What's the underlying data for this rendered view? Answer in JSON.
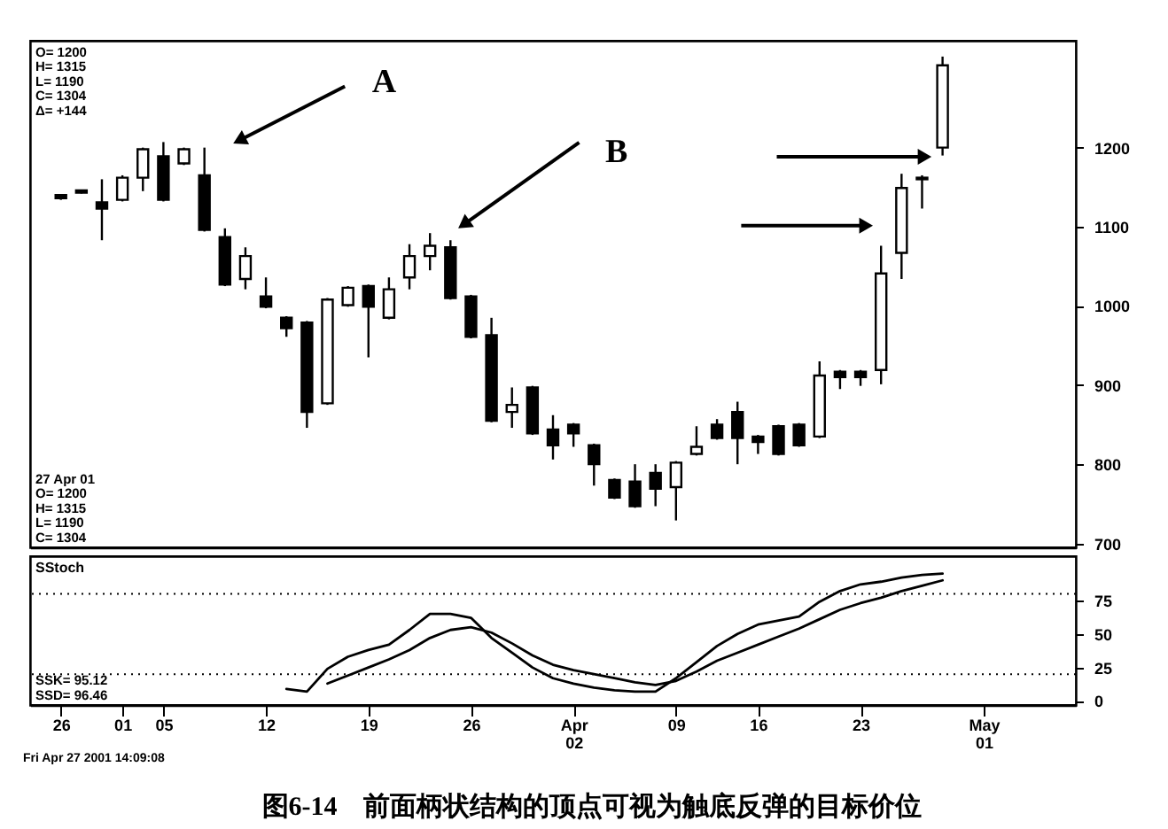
{
  "chart_data": [
    {
      "type": "candlestick",
      "color": "#000000",
      "categories": [
        null,
        null,
        null,
        null,
        null,
        null,
        null,
        null,
        null,
        null,
        null,
        null,
        null,
        null,
        null,
        null,
        null,
        null,
        null,
        null,
        null,
        null,
        null,
        null,
        null,
        null,
        null,
        null,
        null,
        null,
        null,
        null,
        null,
        null,
        null,
        null,
        null,
        null,
        null,
        null,
        null,
        null,
        null,
        null,
        null,
        null,
        null,
        null,
        null,
        null,
        null
      ],
      "ohlc": [
        null,
        [
          1140,
          1141,
          1134,
          1136
        ],
        [
          1146,
          1147,
          1142,
          1143
        ],
        [
          1131,
          1160,
          1083,
          1123
        ],
        [
          1134,
          1165,
          1132,
          1162
        ],
        [
          1162,
          1200,
          1145,
          1198
        ],
        [
          1189,
          1207,
          1132,
          1134
        ],
        [
          1180,
          1200,
          1178,
          1198
        ],
        [
          1165,
          1200,
          1094,
          1096
        ],
        [
          1087,
          1098,
          1025,
          1027
        ],
        [
          1034,
          1074,
          1021,
          1063
        ],
        [
          1012,
          1036,
          997,
          999
        ],
        [
          985,
          987,
          961,
          972
        ],
        [
          979,
          981,
          846,
          866
        ],
        [
          877,
          1010,
          875,
          1008
        ],
        [
          1001,
          1025,
          999,
          1023
        ],
        [
          1025,
          1027,
          935,
          999
        ],
        [
          985,
          1036,
          983,
          1021
        ],
        [
          1036,
          1078,
          1021,
          1063
        ],
        [
          1063,
          1092,
          1045,
          1076
        ],
        [
          1074,
          1083,
          1008,
          1010
        ],
        [
          1012,
          1014,
          959,
          961
        ],
        [
          963,
          985,
          853,
          855
        ],
        [
          866,
          897,
          846,
          875
        ],
        [
          897,
          899,
          837,
          839
        ],
        [
          844,
          862,
          806,
          824
        ],
        [
          850,
          852,
          822,
          839
        ],
        [
          824,
          826,
          773,
          800
        ],
        [
          780,
          782,
          756,
          758
        ],
        [
          778,
          800,
          745,
          747
        ],
        [
          789,
          800,
          747,
          769
        ],
        [
          771,
          804,
          729,
          802
        ],
        [
          813,
          848,
          811,
          822
        ],
        [
          850,
          857,
          831,
          833
        ],
        [
          866,
          879,
          800,
          833
        ],
        [
          835,
          837,
          813,
          828
        ],
        [
          848,
          850,
          811,
          813
        ],
        [
          850,
          852,
          822,
          824
        ],
        [
          835,
          930,
          833,
          912
        ],
        [
          917,
          919,
          895,
          910
        ],
        [
          917,
          919,
          899,
          910
        ],
        [
          919,
          1076,
          901,
          1041
        ],
        [
          1067,
          1167,
          1034,
          1149
        ],
        [
          1162,
          1165,
          1123,
          1160
        ],
        [
          1200,
          1315,
          1190,
          1304
        ],
        null,
        null,
        null,
        null,
        null,
        null
      ],
      "ylim": [
        695,
        1335
      ],
      "yticks": [
        700,
        800,
        900,
        1000,
        1100,
        1200
      ],
      "tick_labels": "y",
      "annotations": [
        "A",
        "B",
        "O= 1200\nH= 1315\nL= 1190\nC= 1304\nΔ= +144",
        "27 Apr 01\nO= 1200\nH= 1315\nL= 1190\nC= 1304"
      ]
    },
    {
      "type": "line",
      "title": "SStoch",
      "categories": [
        null,
        "26",
        null,
        null,
        "01",
        null,
        "05",
        null,
        null,
        null,
        null,
        "12",
        null,
        null,
        null,
        null,
        "19",
        null,
        null,
        null,
        null,
        "26",
        null,
        null,
        null,
        null,
        "Apr\n02",
        null,
        null,
        null,
        null,
        "09",
        null,
        null,
        null,
        "16",
        null,
        null,
        null,
        null,
        "23",
        null,
        null,
        null,
        null,
        null,
        "May\n01",
        null,
        null,
        null,
        null
      ],
      "series": [
        {
          "color": "#000000",
          "values": [
            null,
            null,
            null,
            null,
            null,
            null,
            null,
            null,
            null,
            null,
            null,
            null,
            9,
            7,
            24,
            33,
            38,
            42,
            53,
            65,
            65,
            62,
            47,
            36,
            25,
            17,
            13,
            10,
            8,
            7,
            7,
            17,
            29,
            41,
            50,
            57,
            60,
            63,
            74,
            82,
            87,
            89,
            92,
            94,
            95,
            null,
            null,
            null,
            null,
            null,
            null
          ]
        },
        {
          "color": "#000000",
          "values": [
            null,
            null,
            null,
            null,
            null,
            null,
            null,
            null,
            null,
            null,
            null,
            null,
            null,
            null,
            13,
            19,
            25,
            31,
            38,
            47,
            53,
            55,
            51,
            43,
            34,
            27,
            23,
            20,
            17,
            14,
            12,
            15,
            22,
            30,
            36,
            42,
            48,
            54,
            61,
            68,
            73,
            77,
            82,
            86,
            90,
            null,
            null,
            null,
            null,
            null,
            null
          ]
        }
      ],
      "ylim": [
        -3,
        108
      ],
      "yticks": [
        0,
        25,
        50,
        75
      ],
      "ref_lines": [
        {
          "axis": "y",
          "value": 80,
          "color": "#000000",
          "line_style": "dotted"
        },
        {
          "axis": "y",
          "value": 20,
          "color": "#000000",
          "line_style": "dotted"
        }
      ],
      "annotations": [
        "SSK= 95.12\nSSD= 96.46",
        "Fri Apr 27 2001 14:09:08",
        "图6-14　前面柄状结构的顶点可视为触底反弹的目标价位"
      ]
    }
  ]
}
